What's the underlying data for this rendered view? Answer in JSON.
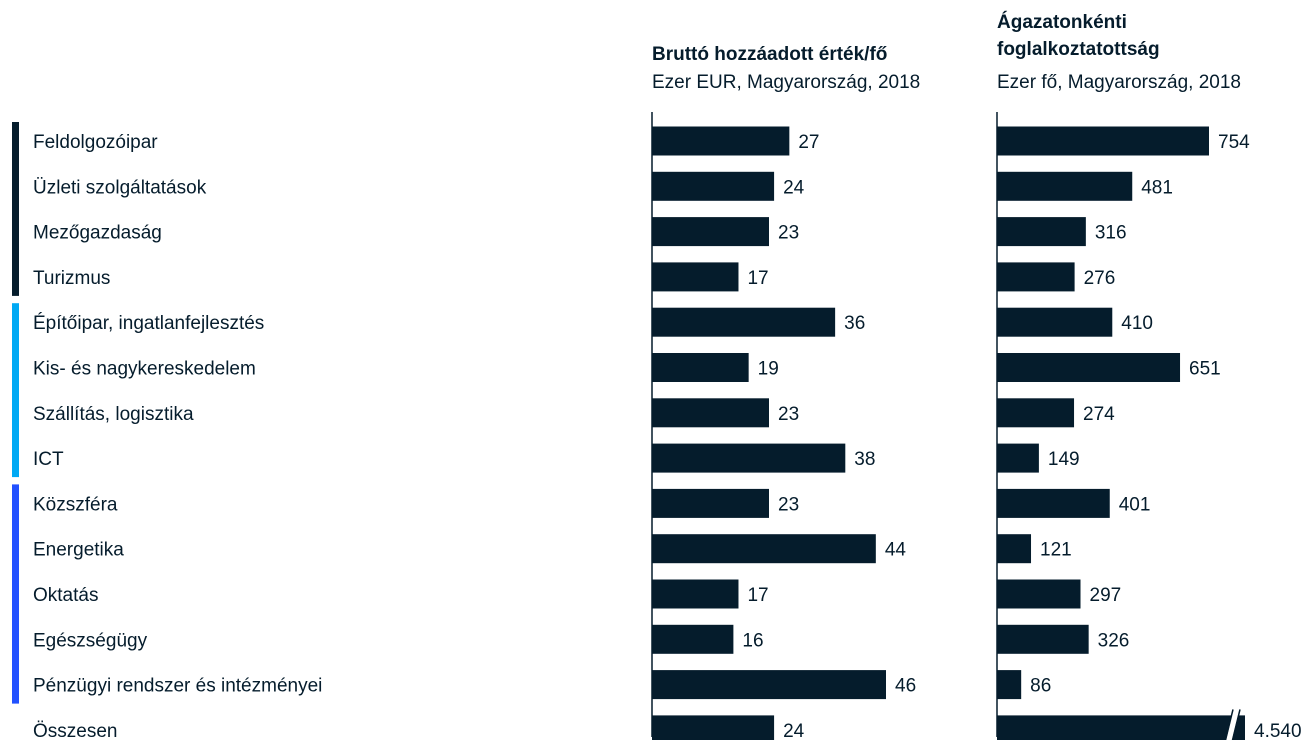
{
  "chart_data": [
    {
      "type": "bar",
      "orientation": "horizontal",
      "title": "Bruttó hozzáadott érték/fő",
      "subtitle": "Ezer EUR, Magyarország, 2018",
      "categories": [
        "Feldolgozóipar",
        "Üzleti szolgáltatások",
        "Mezőgazdaság",
        "Turizmus",
        "Építőipar, ingatlanfejlesztés",
        "Kis- és nagykereskedelem",
        "Szállítás, logisztika",
        "ICT",
        "Közszféra",
        "Energetika",
        "Oktatás",
        "Egészségügy",
        "Pénzügyi rendszer és intézményei",
        "Összesen"
      ],
      "values": [
        27,
        24,
        23,
        17,
        36,
        19,
        23,
        38,
        23,
        44,
        17,
        16,
        46,
        24
      ],
      "value_labels": [
        "27",
        "24",
        "23",
        "17",
        "36",
        "19",
        "23",
        "38",
        "23",
        "44",
        "17",
        "16",
        "46",
        "24"
      ],
      "xlim": [
        0,
        46
      ],
      "bar_color": "#051c2c"
    },
    {
      "type": "bar",
      "orientation": "horizontal",
      "title_lines": [
        "Ágazatonkénti",
        "foglalkoztatottság"
      ],
      "subtitle": "Ezer fő, Magyarország, 2018",
      "categories": [
        "Feldolgozóipar",
        "Üzleti szolgáltatások",
        "Mezőgazdaság",
        "Turizmus",
        "Építőipar, ingatlanfejlesztés",
        "Kis- és nagykereskedelem",
        "Szállítás, logisztika",
        "ICT",
        "Közszféra",
        "Energetika",
        "Oktatás",
        "Egészségügy",
        "Pénzügyi rendszer és intézményei",
        "Összesen"
      ],
      "values": [
        754,
        481,
        316,
        276,
        410,
        651,
        274,
        149,
        401,
        121,
        297,
        326,
        86,
        4540
      ],
      "value_labels": [
        "754",
        "481",
        "316",
        "276",
        "410",
        "651",
        "274",
        "149",
        "401",
        "121",
        "297",
        "326",
        "86",
        "4.540"
      ],
      "xlim": [
        0,
        754
      ],
      "axis_break_on": "Összesen",
      "bar_color": "#051c2c"
    }
  ],
  "groups": [
    {
      "color": "#051c2c",
      "start": 0,
      "end": 3
    },
    {
      "color": "#00a9f4",
      "start": 4,
      "end": 7
    },
    {
      "color": "#2251ff",
      "start": 8,
      "end": 12
    }
  ]
}
